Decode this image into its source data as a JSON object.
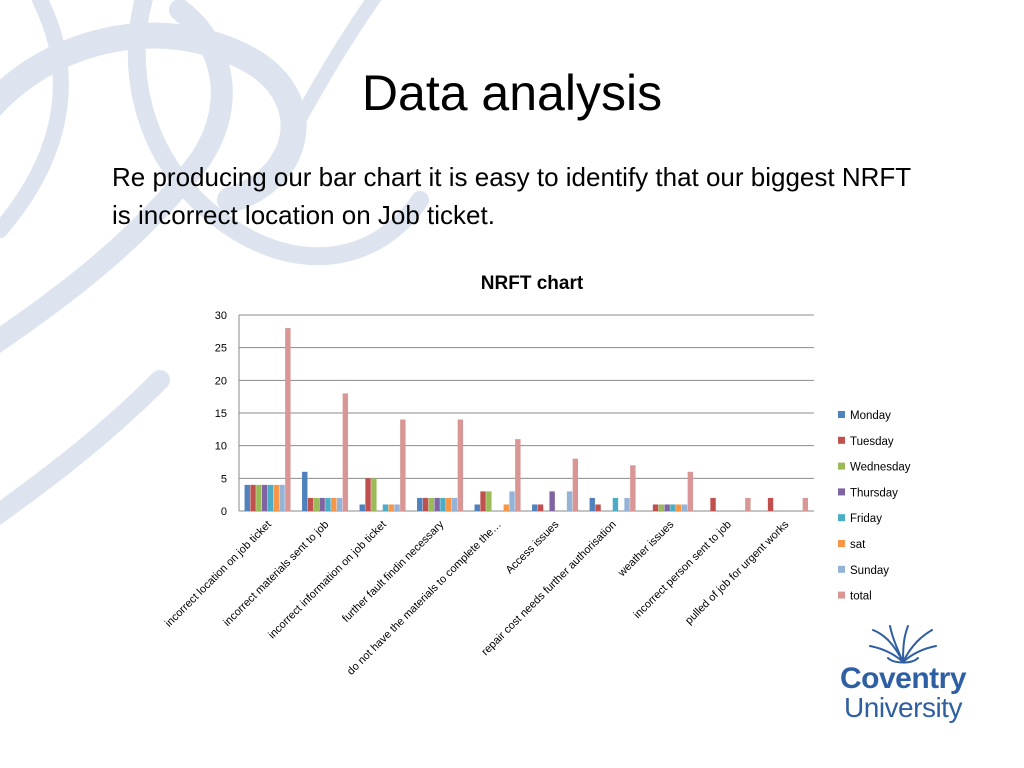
{
  "slide": {
    "title": "Data analysis",
    "body": "Re producing our bar chart it is easy to identify that our biggest NRFT is incorrect location on Job ticket."
  },
  "logo": {
    "line1": "Coventry",
    "line2": "University",
    "color": "#2f5fa3"
  },
  "chart_data": {
    "type": "bar",
    "title": "NRFT chart",
    "xlabel": "",
    "ylabel": "",
    "ylim": [
      0,
      30
    ],
    "yticks": [
      0,
      5,
      10,
      15,
      20,
      25,
      30
    ],
    "grid": true,
    "legend_position": "right",
    "categories": [
      "incorrect location on job ticket",
      "incorrect materials sent to job",
      "incorrect information on job ticket",
      "further fault findin necessary",
      "do not have the materials to complete the…",
      "Access issues",
      "repair cost needs further authorisation",
      "weather issues",
      "incorrect person sent to job",
      "pulled of job for urgent works"
    ],
    "series": [
      {
        "name": "Monday",
        "color": "#4f81bd",
        "values": [
          4,
          6,
          1,
          2,
          1,
          1,
          2,
          0,
          0,
          0
        ]
      },
      {
        "name": "Tuesday",
        "color": "#c0504d",
        "values": [
          4,
          2,
          5,
          2,
          3,
          1,
          1,
          1,
          2,
          2
        ]
      },
      {
        "name": "Wednesday",
        "color": "#9bbb59",
        "values": [
          4,
          2,
          5,
          2,
          3,
          0,
          0,
          1,
          0,
          0
        ]
      },
      {
        "name": "Thursday",
        "color": "#8064a2",
        "values": [
          4,
          2,
          0,
          2,
          0,
          3,
          0,
          1,
          0,
          0
        ]
      },
      {
        "name": "Friday",
        "color": "#4bacc6",
        "values": [
          4,
          2,
          1,
          2,
          0,
          0,
          2,
          1,
          0,
          0
        ]
      },
      {
        "name": "sat",
        "color": "#f79646",
        "values": [
          4,
          2,
          1,
          2,
          1,
          0,
          0,
          1,
          0,
          0
        ]
      },
      {
        "name": "Sunday",
        "color": "#95b3d7",
        "values": [
          4,
          2,
          1,
          2,
          3,
          3,
          2,
          1,
          0,
          0
        ]
      },
      {
        "name": "total",
        "color": "#d99694",
        "values": [
          28,
          18,
          14,
          14,
          11,
          8,
          7,
          6,
          2,
          2
        ]
      }
    ]
  }
}
